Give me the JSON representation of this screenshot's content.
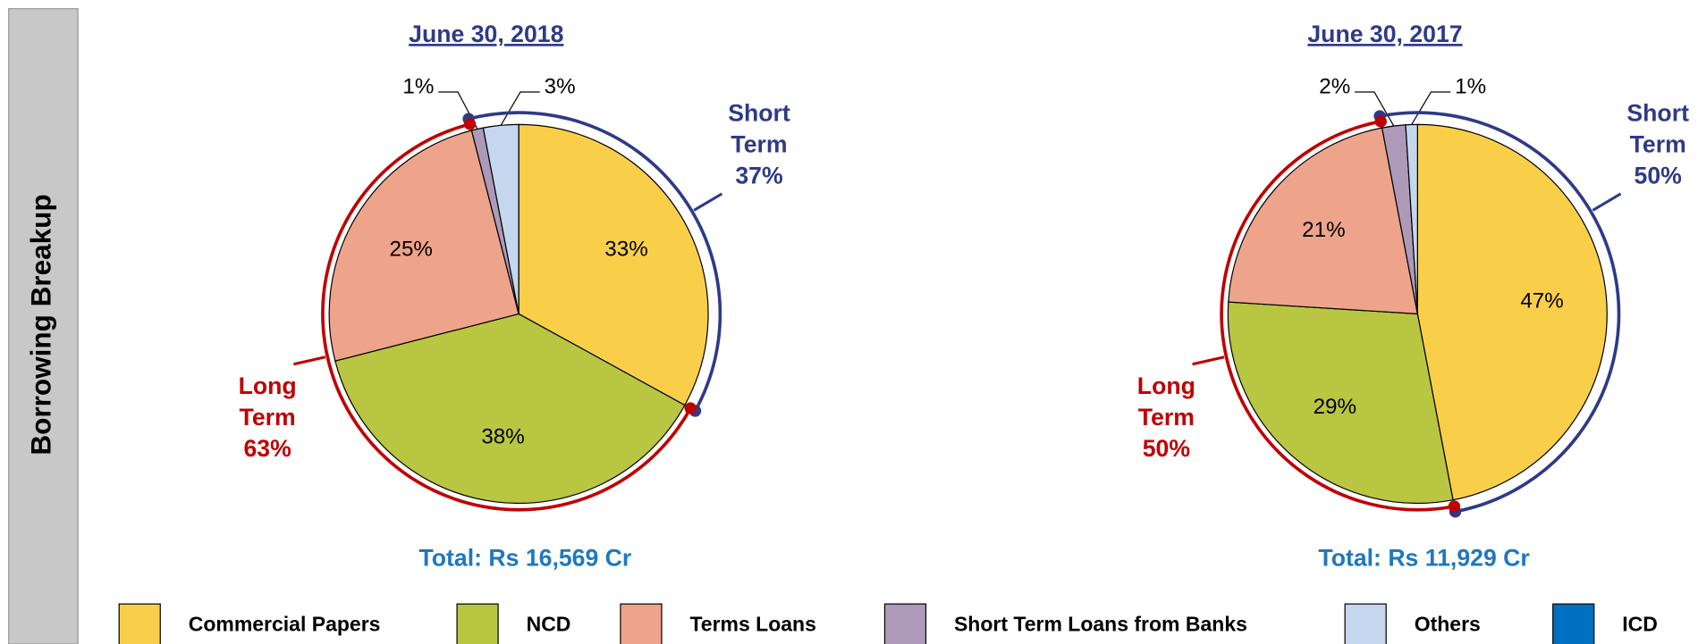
{
  "side_label": "Borrowing Breakup",
  "legend": [
    {
      "name": "Commercial Papers",
      "color": "#f9cf4a"
    },
    {
      "name": "NCD",
      "color": "#b8c642"
    },
    {
      "name": "Terms Loans",
      "color": "#eea48b"
    },
    {
      "name": "Short Term Loans from Banks",
      "color": "#ad9ab8"
    },
    {
      "name": "Others",
      "color": "#c5d7ee"
    },
    {
      "name": "ICD",
      "color": "#0070c0"
    }
  ],
  "chart_data": [
    {
      "type": "pie",
      "title": "June 30, 2018",
      "values": [
        33,
        38,
        25,
        1,
        3
      ],
      "value_labels": [
        "33%",
        "38%",
        "25%",
        "1%",
        "3%"
      ],
      "total": "Total: Rs 16,569 Cr",
      "short_term": {
        "label": "Short Term",
        "value": 37,
        "value_label": "37%",
        "color": "#2e3a87"
      },
      "long_term": {
        "label": "Long Term",
        "value": 63,
        "value_label": "63%",
        "color": "#c00000"
      }
    },
    {
      "type": "pie",
      "title": "June 30, 2017",
      "values": [
        47,
        29,
        21,
        2,
        1
      ],
      "value_labels": [
        "47%",
        "29%",
        "21%",
        "2%",
        "1%"
      ],
      "total": "Total: Rs 11,929 Cr",
      "short_term": {
        "label": "Short Term",
        "value": 50,
        "value_label": "50%",
        "color": "#2e3a87"
      },
      "long_term": {
        "label": "Long Term",
        "value": 50,
        "value_label": "50%",
        "color": "#c00000"
      }
    }
  ]
}
